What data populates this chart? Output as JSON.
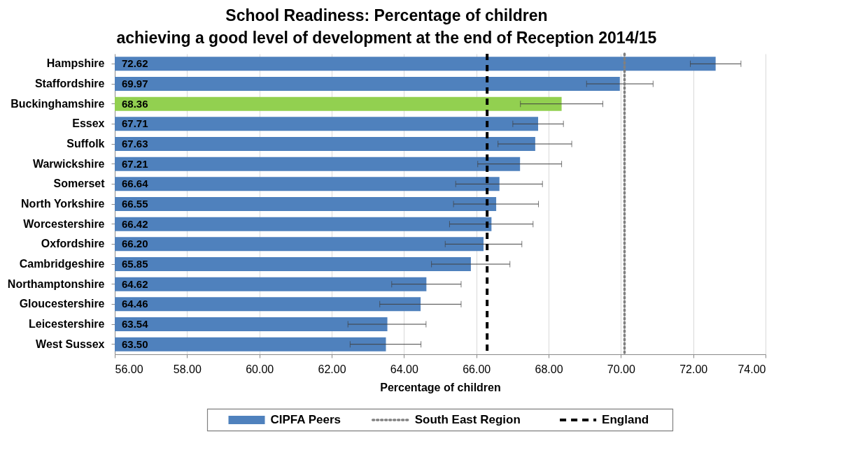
{
  "chart_data": {
    "type": "bar",
    "orientation": "horizontal",
    "title": "School Readiness: Percentage of children\nachieving a good level of development at the end of Reception 2014/15",
    "xlabel": "Percentage of children",
    "categories": [
      "Hampshire",
      "Staffordshire",
      "Buckinghamshire",
      "Essex",
      "Suffolk",
      "Warwickshire",
      "Somerset",
      "North Yorkshire",
      "Worcestershire",
      "Oxfordshire",
      "Cambridgeshire",
      "Northamptonshire",
      "Gloucestershire",
      "Leicestershire",
      "West Sussex"
    ],
    "series": [
      {
        "name": "CIPFA Peers",
        "color": "#4f81bd",
        "colors": [
          "#4f81bd",
          "#4f81bd",
          "#92d050",
          "#4f81bd",
          "#4f81bd",
          "#4f81bd",
          "#4f81bd",
          "#4f81bd",
          "#4f81bd",
          "#4f81bd",
          "#4f81bd",
          "#4f81bd",
          "#4f81bd",
          "#4f81bd",
          "#4f81bd"
        ],
        "values": [
          72.62,
          69.97,
          68.36,
          67.71,
          67.63,
          67.21,
          66.64,
          66.55,
          66.42,
          66.2,
          65.85,
          64.62,
          64.46,
          63.54,
          63.5
        ],
        "value_labels": [
          "72.62",
          "69.97",
          "68.36",
          "67.71",
          "67.63",
          "67.21",
          "66.64",
          "66.55",
          "66.42",
          "66.20",
          "65.85",
          "64.62",
          "64.46",
          "63.54",
          "63.50"
        ],
        "errors": [
          [
            71.92,
            73.32
          ],
          [
            69.05,
            70.89
          ],
          [
            67.22,
            69.5
          ],
          [
            67.01,
            68.41
          ],
          [
            66.6,
            68.64
          ],
          [
            66.04,
            68.36
          ],
          [
            65.43,
            67.83
          ],
          [
            65.37,
            67.72
          ],
          [
            65.26,
            67.57
          ],
          [
            65.14,
            67.26
          ],
          [
            64.76,
            66.93
          ],
          [
            63.66,
            65.58
          ],
          [
            63.33,
            65.58
          ],
          [
            62.45,
            64.61
          ],
          [
            62.51,
            64.47
          ]
        ]
      }
    ],
    "ref_lines": [
      {
        "axis": "x",
        "value": 70.1,
        "label": "South East Region",
        "color": "#808080",
        "line_style": "dotted"
      },
      {
        "axis": "x",
        "value": 66.3,
        "label": "England",
        "color": "#000000",
        "line_style": "dashed"
      }
    ],
    "xlim": [
      56,
      74
    ],
    "xticks": [
      {
        "value": 56,
        "label": "56.00"
      },
      {
        "value": 58,
        "label": "58.00"
      },
      {
        "value": 60,
        "label": "60.00"
      },
      {
        "value": 62,
        "label": "62.00"
      },
      {
        "value": 64,
        "label": "64.00"
      },
      {
        "value": 66,
        "label": "66.00"
      },
      {
        "value": 68,
        "label": "68.00"
      },
      {
        "value": 70,
        "label": "70.00"
      },
      {
        "value": 72,
        "label": "72.00"
      },
      {
        "value": 74,
        "label": "74.00"
      }
    ],
    "grid": "x",
    "legend": "bottom"
  }
}
